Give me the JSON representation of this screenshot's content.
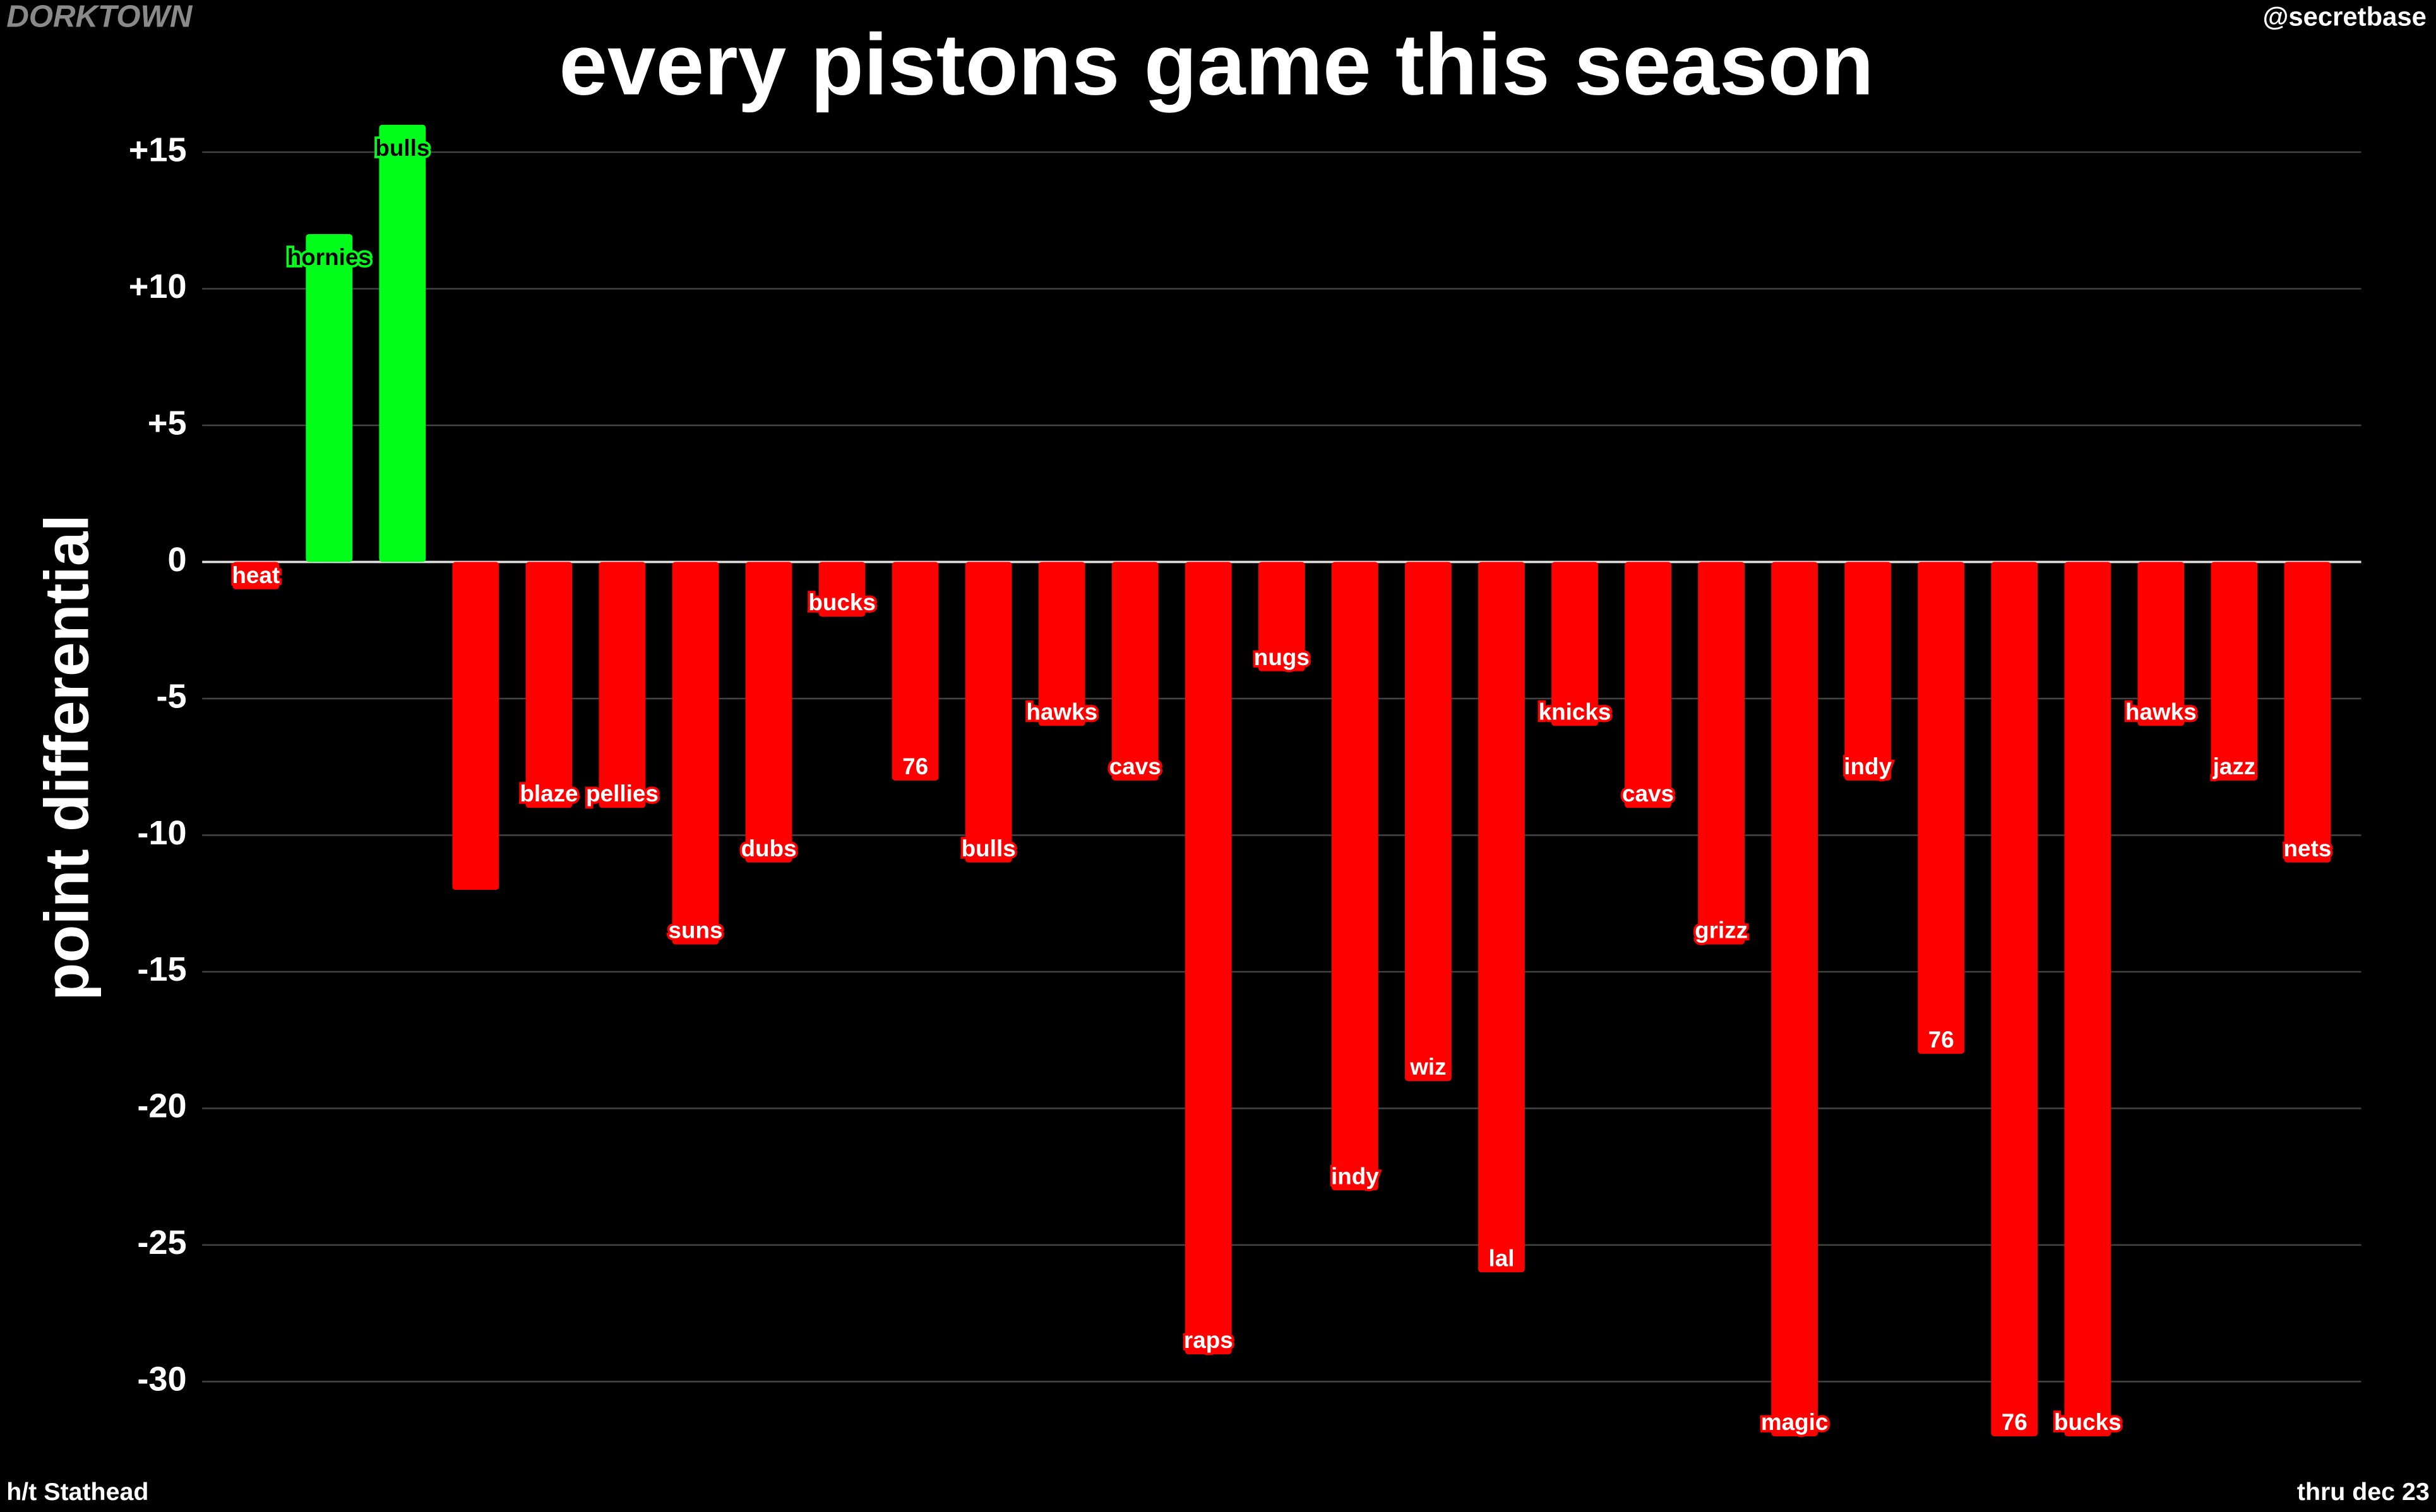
{
  "chart_data": {
    "type": "bar",
    "title": "every pistons game this season",
    "ylabel": "point differential",
    "watermark": "DORKTOWN",
    "handle": "@secretbase",
    "credit": "h/t Stathead",
    "note": "thru dec 23",
    "categories": [
      "heat",
      "hornies",
      "bulls",
      null,
      "blaze",
      "pellies",
      "suns",
      "dubs",
      "bucks",
      "76",
      "bulls",
      "hawks",
      "cavs",
      "raps",
      "nugs",
      "indy",
      "wiz",
      "lal",
      "knicks",
      "cavs",
      "grizz",
      "magic",
      "indy",
      "76",
      "76",
      "bucks",
      "hawks",
      "jazz",
      "nets"
    ],
    "values": [
      -1,
      12,
      16,
      -12,
      -9,
      -9,
      -14,
      -11,
      -2,
      -8,
      -11,
      -6,
      -8,
      -29,
      -4,
      -23,
      -19,
      -26,
      -6,
      -9,
      -14,
      -32,
      -8,
      -18,
      -32,
      -32,
      -6,
      -8,
      -11
    ],
    "positive_color": "#00ff1a",
    "negative_color": "#ff0000",
    "ylim": [
      -33,
      16.5
    ],
    "yticks": [
      {
        "value": 15,
        "label": "+15"
      },
      {
        "value": 10,
        "label": "+10"
      },
      {
        "value": 5,
        "label": "+5"
      },
      0,
      -5,
      -10,
      -15,
      -20,
      -25,
      -30
    ],
    "grid": true
  }
}
